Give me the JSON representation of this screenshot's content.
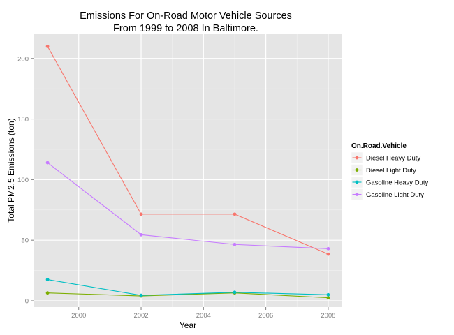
{
  "chart_data": {
    "type": "line",
    "title_lines": [
      "Emissions For On-Road Motor Vehicle Sources",
      "From 1999 to 2008 In Baltimore."
    ],
    "xlabel": "Year",
    "ylabel": "Total PM2.5 Emissions (ton)",
    "x": [
      1999,
      2002,
      2005,
      2008
    ],
    "xlim": [
      1998.55,
      2008.45
    ],
    "ylim": [
      -5.2,
      220.6
    ],
    "xticks": [
      2000,
      2002,
      2004,
      2006,
      2008
    ],
    "yticks": [
      0,
      50,
      100,
      150,
      200
    ],
    "grid": true,
    "legend_position": "right",
    "legend_title": "On.Road.Vehicle",
    "series": [
      {
        "name": "Diesel Heavy Duty",
        "color": "#F8766D",
        "values": [
          210.0,
          71.5,
          71.5,
          38.5
        ]
      },
      {
        "name": "Diesel Light Duty",
        "color": "#7CAE00",
        "values": [
          6.5,
          4.0,
          6.5,
          2.5
        ]
      },
      {
        "name": "Gasoline Heavy Duty",
        "color": "#00BFC4",
        "values": [
          17.5,
          4.5,
          7.0,
          5.0
        ]
      },
      {
        "name": "Gasoline Light Duty",
        "color": "#C77CFF",
        "values": [
          114.0,
          54.5,
          46.5,
          43.0
        ]
      }
    ]
  }
}
